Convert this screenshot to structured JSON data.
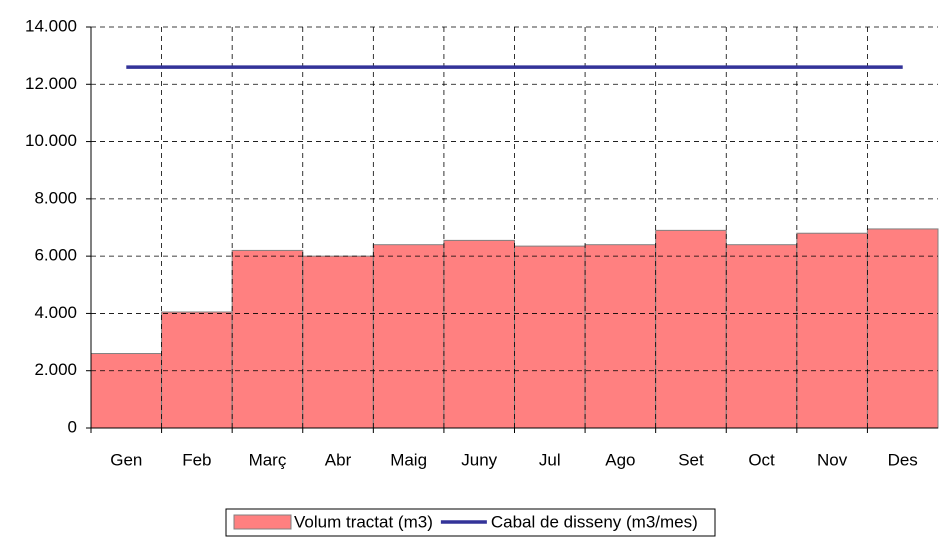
{
  "chart_data": {
    "type": "bar",
    "categories": [
      "Gen",
      "Feb",
      "Març",
      "Abr",
      "Maig",
      "Juny",
      "Jul",
      "Ago",
      "Set",
      "Oct",
      "Nov",
      "Des"
    ],
    "series": [
      {
        "name": "Volum tractat (m3)",
        "color": "#FF8080",
        "values": [
          2600,
          4050,
          6200,
          6000,
          6400,
          6550,
          6350,
          6400,
          6900,
          6400,
          6800,
          6950
        ]
      },
      {
        "name": "Cabal de disseny (m3/mes)",
        "color": "#333399",
        "type": "line",
        "values": [
          12600,
          12600,
          12600,
          12600,
          12600,
          12600,
          12600,
          12600,
          12600,
          12600,
          12600,
          12600
        ]
      }
    ],
    "ylim": [
      0,
      14000
    ],
    "yticks": [
      0,
      {
        "value": 2000,
        "label": "2.000"
      },
      {
        "value": 4000,
        "label": "4.000"
      },
      {
        "value": 6000,
        "label": "6.000"
      },
      {
        "value": 8000,
        "label": "8.000"
      },
      {
        "value": 10000,
        "label": "10.000"
      },
      {
        "value": 12000,
        "label": "12.000"
      },
      {
        "value": 14000,
        "label": "14.000"
      }
    ],
    "grid": true,
    "legend": "bottom"
  }
}
